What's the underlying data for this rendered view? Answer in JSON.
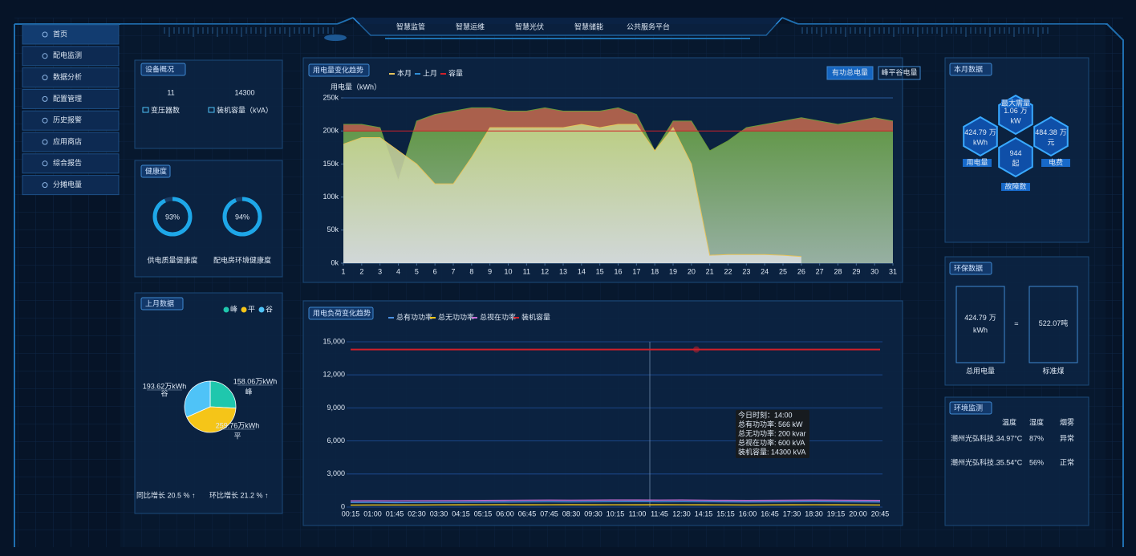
{
  "nav": [
    "首页",
    "配电监测",
    "数据分析",
    "配置管理",
    "历史报警",
    "应用商店",
    "综合报告",
    "分摊电量"
  ],
  "tabs": [
    "智慧监管",
    "智慧运维",
    "智慧光伏",
    "智慧储能",
    "公共服务平台"
  ],
  "device": {
    "title": "设备概况",
    "items": [
      {
        "value": 11,
        "label": "变压器数"
      },
      {
        "value": 14300,
        "label": "装机容量（kVA）"
      }
    ]
  },
  "health": {
    "title": "健康度",
    "type": "donut",
    "categories": [
      "供电质量健康度",
      "配电房环境健康度"
    ],
    "values": [
      93,
      94
    ],
    "value_labels": [
      "93%",
      "94%"
    ],
    "color": "#1ea7e8"
  },
  "last_month": {
    "title": "上月数据",
    "type": "pie",
    "categories": [
      "峰",
      "平",
      "谷"
    ],
    "values": [
      158.06,
      259.76,
      193.62
    ],
    "value_labels": [
      "158.06万kWh",
      "259.76万kWh",
      "193.62万kWh"
    ],
    "colors": [
      "#1fc7ad",
      "#f5c518",
      "#4fc3f7"
    ],
    "footer": [
      "同比增长 20.5 % ↑",
      "环比增长 21.2 % ↑"
    ]
  },
  "usage_chart": {
    "type": "area",
    "title": "用电量变化趋势",
    "y_label": "用电量（kWh）",
    "buttons": [
      "有功总电量",
      "峰平谷电量"
    ],
    "x": [
      1,
      2,
      3,
      4,
      5,
      6,
      7,
      8,
      9,
      10,
      11,
      12,
      13,
      14,
      15,
      16,
      17,
      18,
      19,
      20,
      21,
      22,
      23,
      24,
      25,
      26,
      27,
      28,
      29,
      30,
      31
    ],
    "xlim": [
      1,
      31
    ],
    "xticks": [
      1,
      2,
      3,
      4,
      5,
      6,
      7,
      8,
      9,
      10,
      11,
      12,
      13,
      14,
      15,
      16,
      17,
      18,
      19,
      20,
      21,
      22,
      23,
      24,
      25,
      26,
      27,
      28,
      29,
      30,
      31
    ],
    "ylim": [
      0,
      250000
    ],
    "yticks": [
      {
        "value": 0,
        "label": "0k"
      },
      {
        "value": 50000,
        "label": "50k"
      },
      {
        "value": 100000,
        "label": "100k"
      },
      {
        "value": 150000,
        "label": "150k"
      },
      {
        "value": 200000,
        "label": "200k"
      },
      {
        "value": 250000,
        "label": "250k"
      }
    ],
    "series": [
      {
        "name": "本月",
        "color": "#e6c35c",
        "type": "area",
        "values": [
          180000,
          190000,
          190000,
          170000,
          150000,
          120000,
          120000,
          160000,
          205000,
          205000,
          205000,
          205000,
          205000,
          210000,
          205000,
          210000,
          210000,
          170000,
          205000,
          150000,
          12000,
          13000,
          13000,
          13000,
          12000,
          10000,
          null,
          null,
          null,
          null,
          null
        ]
      },
      {
        "name": "上月",
        "color": "#2f8fd8",
        "type": "area",
        "values": [
          210000,
          210000,
          205000,
          125000,
          215000,
          225000,
          230000,
          235000,
          235000,
          230000,
          230000,
          235000,
          230000,
          230000,
          230000,
          235000,
          225000,
          170000,
          215000,
          215000,
          170000,
          185000,
          205000,
          210000,
          215000,
          220000,
          215000,
          210000,
          215000,
          220000,
          215000
        ]
      },
      {
        "name": "容量",
        "color": "#d0202a",
        "type": "line",
        "values": [
          200000,
          200000,
          200000,
          200000,
          200000,
          200000,
          200000,
          200000,
          200000,
          200000,
          200000,
          200000,
          200000,
          200000,
          200000,
          200000,
          200000,
          200000,
          200000,
          200000,
          200000,
          200000,
          200000,
          200000,
          200000,
          200000,
          200000,
          200000,
          200000,
          200000,
          200000
        ]
      }
    ]
  },
  "load_chart": {
    "type": "line",
    "title": "用电负荷变化趋势",
    "grid": true,
    "categories": [
      "00:15",
      "01:00",
      "01:45",
      "02:30",
      "03:30",
      "04:15",
      "05:15",
      "06:00",
      "06:45",
      "07:45",
      "08:30",
      "09:30",
      "10:15",
      "11:00",
      "11:45",
      "12:30",
      "14:15",
      "15:15",
      "16:00",
      "16:45",
      "17:30",
      "18:30",
      "19:15",
      "20:00",
      "20:45"
    ],
    "ylim": [
      0,
      15000
    ],
    "yticks": [
      0,
      {
        "value": 3000,
        "label": "3,000"
      },
      {
        "value": 6000,
        "label": "6,000"
      },
      {
        "value": 9000,
        "label": "9,000"
      },
      {
        "value": 12000,
        "label": "12,000"
      },
      {
        "value": 15000,
        "label": "15,000"
      }
    ],
    "series": [
      {
        "name": "总有功功率",
        "color": "#4a90e2",
        "values": [
          420,
          430,
          410,
          420,
          430,
          440,
          450,
          460,
          470,
          480,
          470,
          480,
          490,
          500,
          480,
          490,
          480,
          470,
          460,
          470,
          480,
          490,
          480,
          470,
          460
        ]
      },
      {
        "name": "总无功功率",
        "color": "#f5c518",
        "values": [
          180,
          190,
          185,
          190,
          195,
          200,
          205,
          210,
          200,
          205,
          210,
          200,
          205,
          200,
          210,
          205,
          200,
          195,
          190,
          195,
          200,
          205,
          200,
          195,
          190
        ]
      },
      {
        "name": "总视在功率",
        "color": "#c86dd7",
        "values": [
          560,
          570,
          560,
          570,
          580,
          590,
          600,
          610,
          620,
          630,
          620,
          630,
          640,
          640,
          630,
          640,
          620,
          610,
          600,
          610,
          620,
          630,
          620,
          610,
          600
        ]
      },
      {
        "name": "装机容量",
        "color": "#d0202a",
        "values": [
          14300,
          14300,
          14300,
          14300,
          14300,
          14300,
          14300,
          14300,
          14300,
          14300,
          14300,
          14300,
          14300,
          14300,
          14300,
          14300,
          14300,
          14300,
          14300,
          14300,
          14300,
          14300,
          14300,
          14300,
          14300
        ]
      }
    ],
    "tooltip": [
      "今日时刻：14:00",
      "总有功功率: 566 kW",
      "总无功功率: 200 kvar",
      "总视在功率: 600 kVA",
      "装机容量: 14300 kVA"
    ]
  },
  "month_data": {
    "title": "本月数据",
    "items": [
      {
        "label": "最大需量",
        "value": 1.06,
        "unit": [
          "万",
          "kW"
        ]
      },
      {
        "label": "用电量",
        "value": 424.79,
        "unit": [
          "万",
          "kWh"
        ]
      },
      {
        "label": "电费",
        "value": 484.38,
        "unit": [
          "万",
          "元"
        ]
      },
      {
        "label": "故障数",
        "value": 944,
        "unit": [
          "起"
        ]
      }
    ]
  },
  "env_data": {
    "title": "环保数据",
    "left": {
      "value": 424.79,
      "unit": [
        "万",
        "kWh"
      ],
      "label": "总用电量"
    },
    "symbol": "≈",
    "right": {
      "value": 522.07,
      "unit": "吨",
      "label": "标准煤"
    }
  },
  "env_monitor": {
    "title": "环境监测",
    "headers": [
      "温度",
      "湿度",
      "烟雾"
    ],
    "rows": [
      [
        "潮州光弘科技...",
        "34.97°C",
        "87%",
        "异常"
      ],
      [
        "潮州光弘科技...",
        "35.54°C",
        "56%",
        "正常"
      ]
    ]
  }
}
